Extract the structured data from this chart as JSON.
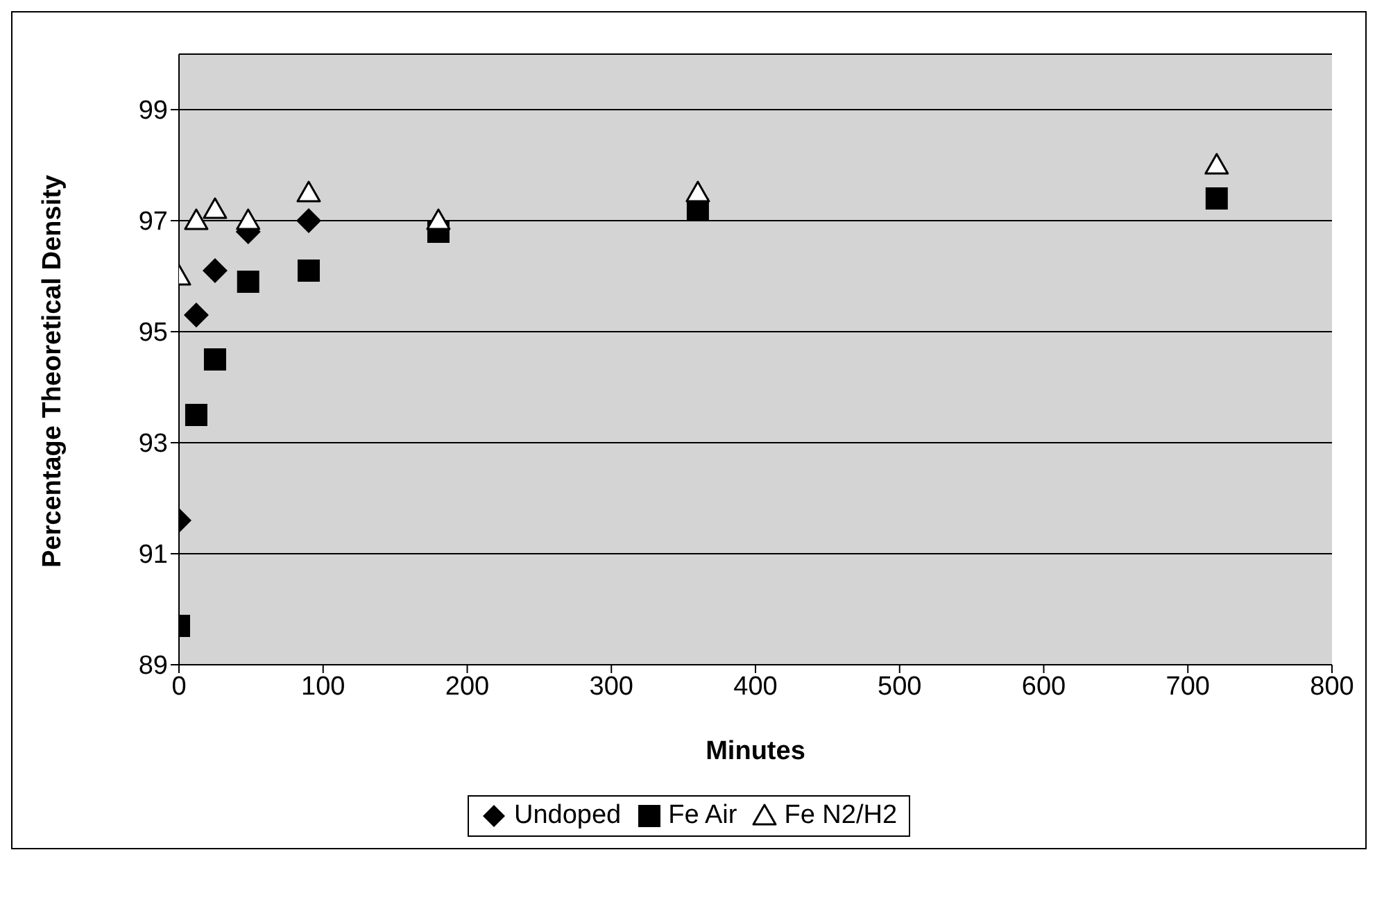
{
  "chart_data": {
    "type": "scatter",
    "xlabel": "Minutes",
    "ylabel": "Percentage Theoretical Density",
    "x": [
      0,
      12,
      25,
      48,
      90,
      180,
      360,
      720
    ],
    "series": [
      {
        "name": "Undoped",
        "color": "#000000",
        "marker": "diamond",
        "values": [
          91.6,
          95.3,
          96.1,
          96.8,
          97.0,
          null,
          null,
          null
        ]
      },
      {
        "name": "Fe Air",
        "color": "#000000",
        "marker": "square",
        "values": [
          89.7,
          93.5,
          94.5,
          95.9,
          96.1,
          96.8,
          97.2,
          97.4
        ]
      },
      {
        "name": "Fe N2/H2",
        "color": "#000000",
        "marker": "triangle",
        "values": [
          96.0,
          97.0,
          97.2,
          97.0,
          97.5,
          97.0,
          97.5,
          98.0
        ]
      }
    ],
    "xlim": [
      0,
      800
    ],
    "xticks": [
      0,
      100,
      200,
      300,
      400,
      500,
      600,
      700,
      800
    ],
    "ylim": [
      89,
      100
    ],
    "yticks": [
      89,
      91,
      93,
      95,
      97,
      99
    ],
    "grid": "y",
    "legend": "bottom"
  }
}
